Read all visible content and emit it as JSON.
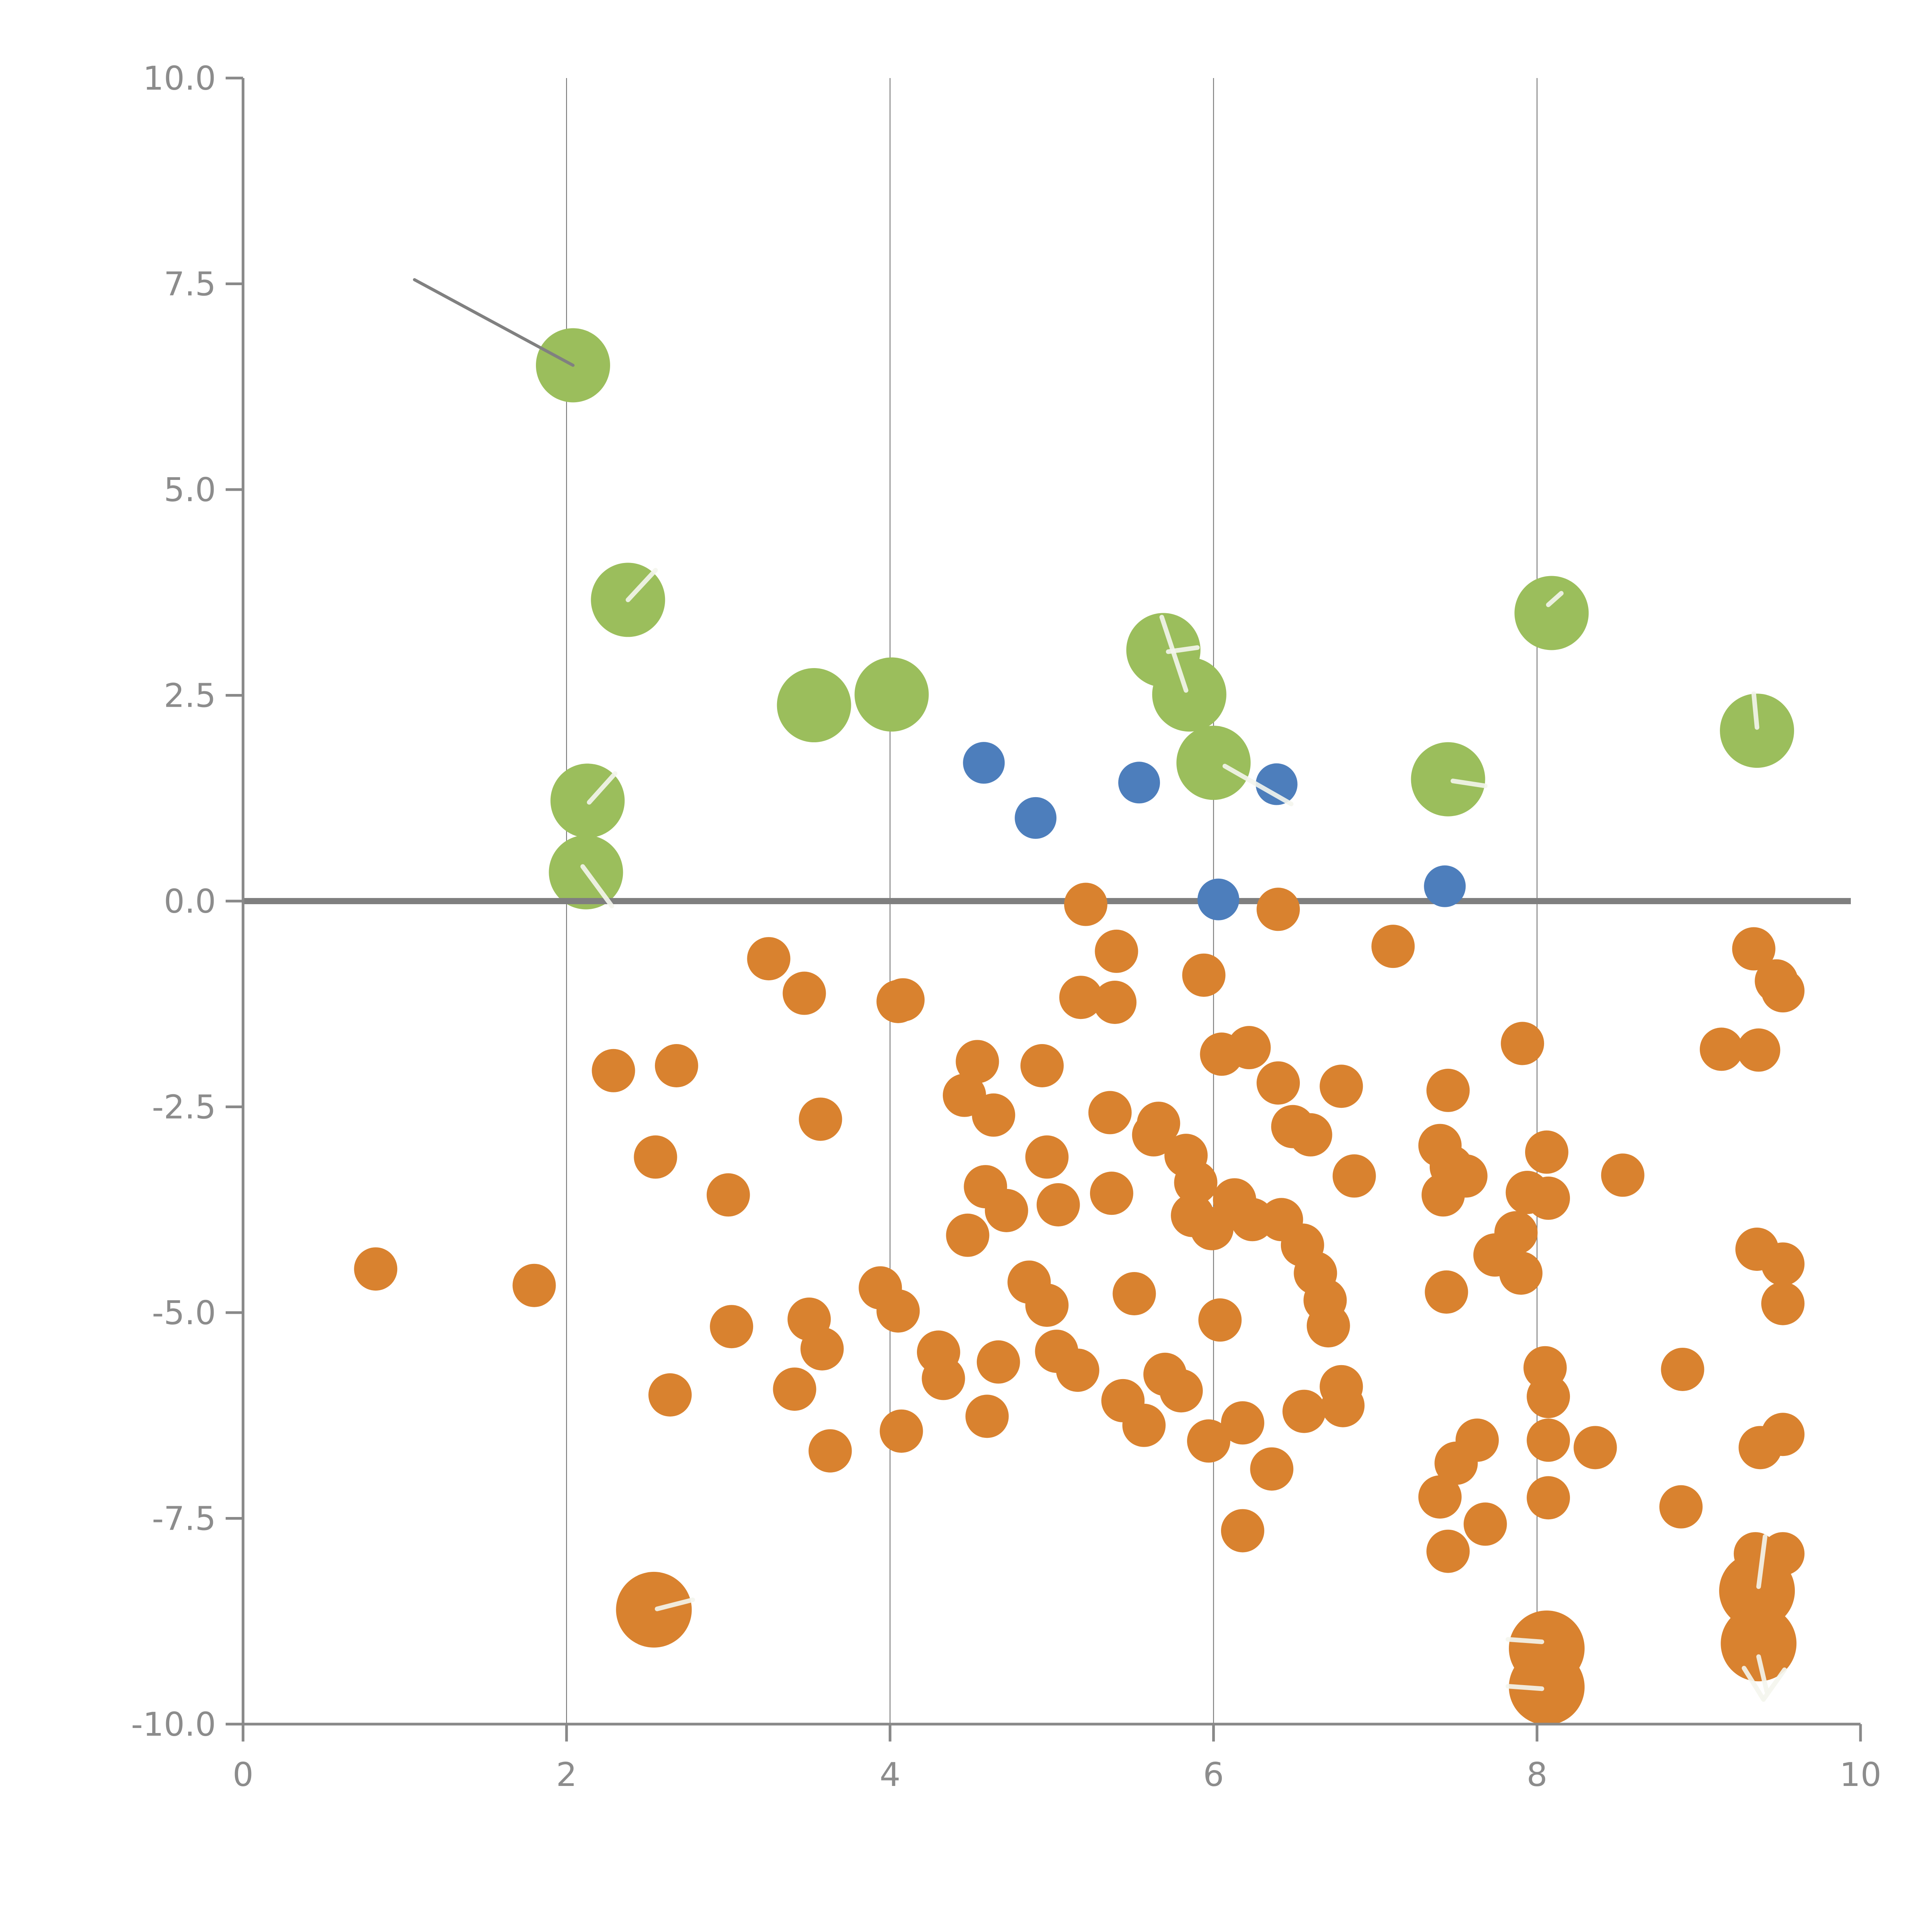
{
  "chart_data": {
    "type": "scatter",
    "title": "",
    "xlabel": "",
    "ylabel": "",
    "xlim": [
      0,
      10
    ],
    "ylim": [
      -10,
      10
    ],
    "x_ticks": [
      "0",
      "2",
      "4",
      "6",
      "8",
      "10"
    ],
    "x_tick_values": [
      0,
      2,
      4,
      6,
      8,
      10
    ],
    "y_ticks": [
      "10.0",
      "7.5",
      "5.0",
      "2.5",
      "0.0",
      "-2.5",
      "-5.0",
      "-7.5",
      "-10.0"
    ],
    "y_tick_values": [
      10,
      7.5,
      5,
      2.5,
      0,
      -2.5,
      -5,
      -7.5,
      -10
    ],
    "grid_x": [
      2,
      4,
      6,
      8
    ],
    "grid_on": true,
    "legend_position": "none",
    "zero_line_y": 0,
    "annotation_line": {
      "x1": 1.06,
      "y1": 7.55,
      "x2": 2.04,
      "y2": 6.51
    },
    "series": [
      {
        "name": "green-large-markers",
        "color": "#9bbe5c",
        "radius": 96,
        "points": [
          [
            2.04,
            6.51
          ],
          [
            2.38,
            3.66
          ],
          [
            3.53,
            2.38
          ],
          [
            4.01,
            2.51
          ],
          [
            2.13,
            1.22
          ],
          [
            2.12,
            0.35
          ],
          [
            5.69,
            3.05
          ],
          [
            5.85,
            2.51
          ],
          [
            6.0,
            1.68
          ],
          [
            7.45,
            1.48
          ],
          [
            8.09,
            3.5
          ],
          [
            9.36,
            2.07
          ]
        ]
      },
      {
        "name": "blue-medium-markers",
        "color": "#4d7ebc",
        "radius": 54,
        "points": [
          [
            4.58,
            1.68
          ],
          [
            4.9,
            1.01
          ],
          [
            5.54,
            1.44
          ],
          [
            6.39,
            1.42
          ],
          [
            6.03,
            0.02
          ],
          [
            7.43,
            0.18
          ]
        ]
      },
      {
        "name": "orange-small-markers",
        "color": "#d9822f",
        "radius": 56,
        "points": [
          [
            5.21,
            -0.04
          ],
          [
            6.4,
            -0.1
          ],
          [
            5.4,
            -0.61
          ],
          [
            5.94,
            -0.9
          ],
          [
            5.18,
            -1.17
          ],
          [
            5.39,
            -1.23
          ],
          [
            4.08,
            -1.2
          ],
          [
            3.25,
            -0.7
          ],
          [
            3.47,
            -1.12
          ],
          [
            4.05,
            -1.22
          ],
          [
            7.11,
            -0.55
          ],
          [
            9.34,
            -0.58
          ],
          [
            9.48,
            -0.97
          ],
          [
            2.29,
            -2.06
          ],
          [
            2.68,
            -2.0
          ],
          [
            2.55,
            -3.11
          ],
          [
            3.0,
            -3.57
          ],
          [
            0.82,
            -4.47
          ],
          [
            1.8,
            -4.67
          ],
          [
            3.02,
            -5.17
          ],
          [
            3.57,
            -2.65
          ],
          [
            4.54,
            -1.95
          ],
          [
            4.46,
            -2.36
          ],
          [
            4.64,
            -2.6
          ],
          [
            4.94,
            -2.0
          ],
          [
            5.36,
            -2.57
          ],
          [
            5.63,
            -2.84
          ],
          [
            4.97,
            -3.11
          ],
          [
            5.04,
            -3.69
          ],
          [
            5.37,
            -3.55
          ],
          [
            4.59,
            -3.47
          ],
          [
            4.72,
            -3.76
          ],
          [
            4.48,
            -4.06
          ],
          [
            4.86,
            -4.63
          ],
          [
            4.97,
            -4.91
          ],
          [
            5.51,
            -4.77
          ],
          [
            3.5,
            -5.08
          ],
          [
            3.58,
            -5.44
          ],
          [
            3.94,
            -4.7
          ],
          [
            4.05,
            -4.98
          ],
          [
            4.3,
            -5.48
          ],
          [
            4.33,
            -5.8
          ],
          [
            4.67,
            -5.6
          ],
          [
            5.03,
            -5.47
          ],
          [
            5.16,
            -5.7
          ],
          [
            6.05,
            -1.86
          ],
          [
            6.22,
            -1.78
          ],
          [
            6.4,
            -2.21
          ],
          [
            6.79,
            -2.25
          ],
          [
            7.45,
            -2.3
          ],
          [
            7.91,
            -1.73
          ],
          [
            6.49,
            -2.74
          ],
          [
            6.6,
            -2.84
          ],
          [
            6.87,
            -3.34
          ],
          [
            5.66,
            -2.7
          ],
          [
            5.83,
            -3.09
          ],
          [
            5.89,
            -3.42
          ],
          [
            5.87,
            -3.82
          ],
          [
            5.99,
            -3.98
          ],
          [
            6.13,
            -3.63
          ],
          [
            6.24,
            -3.87
          ],
          [
            6.42,
            -3.87
          ],
          [
            6.55,
            -4.18
          ],
          [
            6.63,
            -4.52
          ],
          [
            6.69,
            -4.85
          ],
          [
            6.71,
            -5.16
          ],
          [
            7.4,
            -2.97
          ],
          [
            7.47,
            -3.23
          ],
          [
            7.42,
            -3.57
          ],
          [
            7.56,
            -3.34
          ],
          [
            7.87,
            -4.03
          ],
          [
            7.74,
            -4.3
          ],
          [
            7.9,
            -4.52
          ],
          [
            7.44,
            -4.75
          ],
          [
            6.04,
            -5.09
          ],
          [
            5.7,
            -5.75
          ],
          [
            5.8,
            -5.95
          ],
          [
            6.79,
            -5.9
          ],
          [
            9.52,
            -1.09
          ],
          [
            9.14,
            -1.8
          ],
          [
            9.37,
            -1.81
          ],
          [
            8.06,
            -3.05
          ],
          [
            8.53,
            -3.33
          ],
          [
            7.94,
            -3.54
          ],
          [
            8.07,
            -3.61
          ],
          [
            9.36,
            -4.23
          ],
          [
            9.52,
            -4.41
          ],
          [
            9.52,
            -4.89
          ],
          [
            2.64,
            -6.0
          ],
          [
            3.41,
            -5.93
          ],
          [
            3.63,
            -6.68
          ],
          [
            4.07,
            -6.44
          ],
          [
            4.6,
            -6.26
          ],
          [
            5.44,
            -6.07
          ],
          [
            5.57,
            -6.37
          ],
          [
            5.97,
            -6.56
          ],
          [
            6.18,
            -6.34
          ],
          [
            6.56,
            -6.2
          ],
          [
            6.8,
            -6.13
          ],
          [
            6.36,
            -6.9
          ],
          [
            6.18,
            -7.65
          ],
          [
            7.63,
            -6.55
          ],
          [
            7.5,
            -6.83
          ],
          [
            7.4,
            -7.24
          ],
          [
            7.68,
            -7.57
          ],
          [
            7.45,
            -7.9
          ],
          [
            8.05,
            -5.67
          ],
          [
            8.07,
            -6.02
          ],
          [
            8.07,
            -6.55
          ],
          [
            8.07,
            -7.25
          ],
          [
            8.36,
            -6.64
          ],
          [
            8.89,
            -7.36
          ],
          [
            8.9,
            -5.69
          ],
          [
            9.52,
            -6.48
          ],
          [
            9.38,
            -6.64
          ],
          [
            9.35,
            -7.93
          ],
          [
            9.52,
            -7.93
          ]
        ]
      },
      {
        "name": "orange-large-markers",
        "color": "#d9822f",
        "radius": 98,
        "points": [
          [
            2.54,
            -8.61
          ],
          [
            8.06,
            -9.08
          ],
          [
            8.06,
            -9.55
          ],
          [
            9.36,
            -8.38
          ],
          [
            9.37,
            -9.02
          ]
        ]
      }
    ],
    "white_marks": [
      [
        2.38,
        3.66,
        2.55,
        4.02
      ],
      [
        2.14,
        1.2,
        2.3,
        1.55
      ],
      [
        2.1,
        0.42,
        2.28,
        -0.06
      ],
      [
        5.68,
        3.45,
        5.83,
        2.56
      ],
      [
        5.72,
        3.03,
        5.9,
        3.08
      ],
      [
        6.07,
        1.64,
        6.48,
        1.18
      ],
      [
        7.48,
        1.46,
        7.68,
        1.4
      ],
      [
        8.07,
        3.6,
        8.15,
        3.74
      ],
      [
        9.36,
        2.11,
        9.34,
        2.52
      ],
      [
        2.56,
        -8.6,
        2.78,
        -8.49
      ],
      [
        7.82,
        -8.97,
        8.03,
        -9.0
      ],
      [
        7.82,
        -9.54,
        8.03,
        -9.57
      ],
      [
        9.41,
        -7.72,
        9.37,
        -8.33
      ],
      [
        9.37,
        -9.18,
        9.42,
        -9.6
      ],
      [
        9.28,
        -9.32,
        9.4,
        -9.7
      ],
      [
        9.4,
        -9.7,
        9.53,
        -9.34
      ]
    ]
  },
  "colors": {
    "green": "#9bbe5c",
    "blue": "#4d7ebc",
    "orange": "#d9822f",
    "zero_line": "#7f7f7f",
    "annotation_line": "#808080",
    "spine": "#898989",
    "gridline": "#666666",
    "tick_label": "#8c8c8c",
    "white_mark": "#f4f6ee"
  }
}
